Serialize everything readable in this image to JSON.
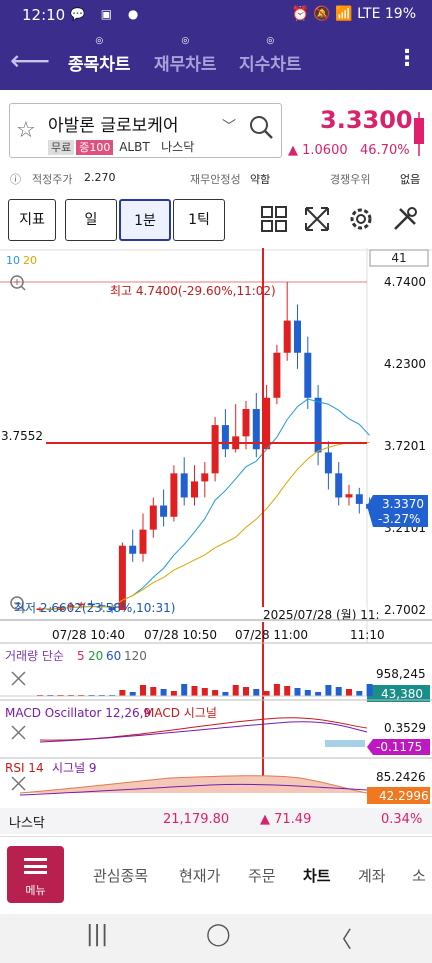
{
  "status": {
    "time": "12:10",
    "left_icons": "💬 ▣ ●",
    "right": "⏰ 🔕 📶 LTE 19%"
  },
  "appbar": {
    "tabs": [
      {
        "label": "종목차트",
        "active": true
      },
      {
        "label": "재무차트",
        "active": false
      },
      {
        "label": "지수차트",
        "active": false
      }
    ]
  },
  "stock": {
    "name": "아발론 글로보케어",
    "tag1": "무료",
    "tag2": "증100",
    "ticker": "ALBT",
    "market": "나스닥",
    "price": "3.3300",
    "change": "▲ 1.0600",
    "change_pct": "46.70%"
  },
  "info": {
    "fair_label": "적정주가",
    "fair_value": "2.270",
    "stability_label": "재무안정성",
    "stability_value": "약함",
    "rank_label": "경쟁우위",
    "rank_value": "없음"
  },
  "toolbar": {
    "indicator": "지표",
    "day": "일",
    "minute": "1분",
    "tick": "1틱"
  },
  "chart": {
    "ma_label_1": "10",
    "ma_label_2": "20",
    "count": "41",
    "high_label": "최고 4.7400(-29.60%,11:02)",
    "low_label": "최저 2.6602(23.58%,10:31)",
    "crosshair_price": "3.7552",
    "crosshair_time": "2025/07/28 (월) 11:",
    "y_ticks": [
      "4.7400",
      "4.2300",
      "3.7201",
      "3.2101",
      "2.7002"
    ],
    "x_ticks": [
      "07/28 10:40",
      "07/28 10:50",
      "07/28 11:00",
      "11:10"
    ],
    "current_price": "3.3370",
    "current_pct": "-3.27%",
    "vol_label": "거래량 단순",
    "vol_ma": [
      "5",
      "20",
      "60",
      "120"
    ],
    "vol_val_1": "958,245",
    "vol_val_2": "43,380",
    "macd_label": "MACD Oscillator 12,26,9",
    "macd_label2": "MACD 시그널",
    "macd_val_1": "0.3529",
    "macd_val_2": "-0.1175",
    "rsi_label": "RSI 14",
    "rsi_label2": "시그널 9",
    "rsi_val_1": "85.2426",
    "rsi_val_2": "42.2996",
    "ma_color_10": "#1e9bd8",
    "ma_color_20": "#e0a400",
    "up_color": "#e02020",
    "down_color": "#2060d0"
  },
  "index_bar": {
    "name": "나스닥",
    "value": "21,179.80",
    "change": "▲ 71.49",
    "pct": "0.34%"
  },
  "nav": {
    "menu": "메뉴",
    "items": [
      "관심종목",
      "현재가",
      "주문",
      "차트",
      "계좌",
      "소"
    ]
  },
  "sysnav": {
    "recent": "|||",
    "home": "◯",
    "back": "〈"
  }
}
